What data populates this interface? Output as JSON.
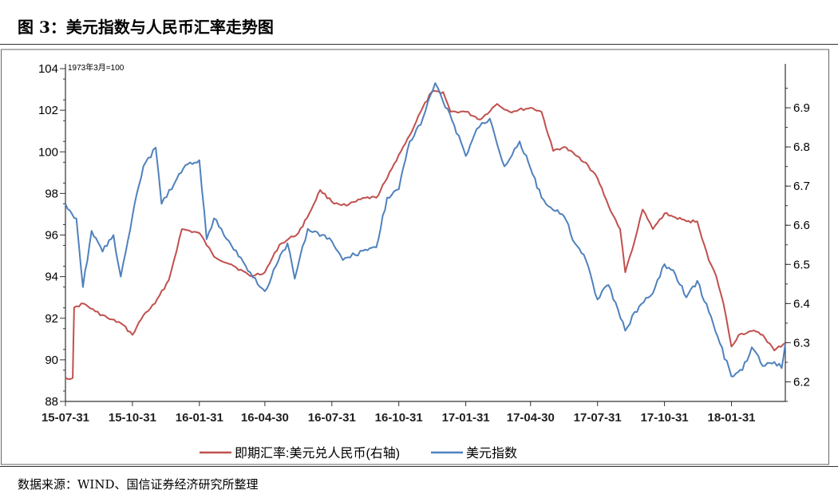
{
  "figure": {
    "title": "图 3：美元指数与人民币汇率走势图",
    "source": "数据来源：WIND、国信证券经济研究所整理",
    "note": "1973年3月=100"
  },
  "colors": {
    "usdcny": "#C0504D",
    "dxy": "#4F81BD",
    "axis": "#333333"
  },
  "chart_data": {
    "type": "line",
    "x_tick_labels": [
      "15-07-31",
      "15-10-31",
      "16-01-31",
      "16-04-30",
      "16-07-31",
      "16-10-31",
      "17-01-31",
      "17-04-30",
      "17-07-31",
      "17-10-31",
      "18-01-31"
    ],
    "x_range": [
      "2015-07-31",
      "2018-04-15"
    ],
    "y_left": {
      "range": [
        88,
        104
      ],
      "ticks": [
        "88",
        "90",
        "92",
        "94",
        "96",
        "98",
        "100",
        "102",
        "104"
      ]
    },
    "y_right": {
      "range": [
        6.15,
        7.0
      ],
      "ticks": [
        "6.2",
        "6.3",
        "6.4",
        "6.5",
        "6.6",
        "6.7",
        "6.8",
        "6.9"
      ]
    },
    "legend_position": "bottom-center",
    "grid": false,
    "series": [
      {
        "name": "即期汇率:美元兑人民币(右轴)",
        "axis": "right",
        "points": [
          [
            "2015-07-31",
            6.21
          ],
          [
            "2015-08-10",
            6.21
          ],
          [
            "2015-08-12",
            6.39
          ],
          [
            "2015-08-25",
            6.4
          ],
          [
            "2015-09-10",
            6.38
          ],
          [
            "2015-09-30",
            6.36
          ],
          [
            "2015-10-15",
            6.35
          ],
          [
            "2015-10-31",
            6.32
          ],
          [
            "2015-11-15",
            6.37
          ],
          [
            "2015-12-01",
            6.4
          ],
          [
            "2015-12-20",
            6.46
          ],
          [
            "2016-01-07",
            6.59
          ],
          [
            "2016-01-31",
            6.58
          ],
          [
            "2016-02-20",
            6.52
          ],
          [
            "2016-03-15",
            6.5
          ],
          [
            "2016-04-10",
            6.47
          ],
          [
            "2016-04-30",
            6.48
          ],
          [
            "2016-05-20",
            6.55
          ],
          [
            "2016-06-15",
            6.58
          ],
          [
            "2016-06-30",
            6.63
          ],
          [
            "2016-07-15",
            6.69
          ],
          [
            "2016-07-31",
            6.66
          ],
          [
            "2016-08-20",
            6.65
          ],
          [
            "2016-09-15",
            6.67
          ],
          [
            "2016-09-30",
            6.67
          ],
          [
            "2016-10-15",
            6.72
          ],
          [
            "2016-10-31",
            6.78
          ],
          [
            "2016-11-15",
            6.83
          ],
          [
            "2016-11-30",
            6.89
          ],
          [
            "2016-12-15",
            6.94
          ],
          [
            "2016-12-31",
            6.94
          ],
          [
            "2017-01-10",
            6.89
          ],
          [
            "2017-01-31",
            6.89
          ],
          [
            "2017-02-20",
            6.87
          ],
          [
            "2017-03-15",
            6.91
          ],
          [
            "2017-04-01",
            6.89
          ],
          [
            "2017-04-30",
            6.9
          ],
          [
            "2017-05-15",
            6.89
          ],
          [
            "2017-05-31",
            6.79
          ],
          [
            "2017-06-15",
            6.8
          ],
          [
            "2017-06-30",
            6.78
          ],
          [
            "2017-07-15",
            6.76
          ],
          [
            "2017-07-31",
            6.72
          ],
          [
            "2017-08-15",
            6.65
          ],
          [
            "2017-08-31",
            6.59
          ],
          [
            "2017-09-07",
            6.48
          ],
          [
            "2017-09-20",
            6.56
          ],
          [
            "2017-10-01",
            6.64
          ],
          [
            "2017-10-15",
            6.59
          ],
          [
            "2017-10-31",
            6.63
          ],
          [
            "2017-11-15",
            6.62
          ],
          [
            "2017-11-30",
            6.61
          ],
          [
            "2017-12-15",
            6.61
          ],
          [
            "2017-12-31",
            6.51
          ],
          [
            "2018-01-10",
            6.47
          ],
          [
            "2018-01-20",
            6.4
          ],
          [
            "2018-01-31",
            6.29
          ],
          [
            "2018-02-10",
            6.32
          ],
          [
            "2018-02-28",
            6.33
          ],
          [
            "2018-03-15",
            6.32
          ],
          [
            "2018-03-31",
            6.28
          ],
          [
            "2018-04-15",
            6.3
          ]
        ]
      },
      {
        "name": "美元指数",
        "axis": "left",
        "points": [
          [
            "2015-07-31",
            97.5
          ],
          [
            "2015-08-15",
            96.8
          ],
          [
            "2015-08-24",
            93.5
          ],
          [
            "2015-09-05",
            96.2
          ],
          [
            "2015-09-20",
            95.2
          ],
          [
            "2015-10-05",
            96.0
          ],
          [
            "2015-10-15",
            94.0
          ],
          [
            "2015-10-31",
            96.9
          ],
          [
            "2015-11-15",
            99.3
          ],
          [
            "2015-12-02",
            100.2
          ],
          [
            "2015-12-10",
            97.5
          ],
          [
            "2015-12-31",
            98.7
          ],
          [
            "2016-01-15",
            99.4
          ],
          [
            "2016-01-31",
            99.6
          ],
          [
            "2016-02-10",
            95.8
          ],
          [
            "2016-02-20",
            96.8
          ],
          [
            "2016-03-15",
            95.5
          ],
          [
            "2016-04-10",
            94.2
          ],
          [
            "2016-04-30",
            93.3
          ],
          [
            "2016-05-15",
            94.5
          ],
          [
            "2016-05-31",
            95.6
          ],
          [
            "2016-06-10",
            93.9
          ],
          [
            "2016-06-28",
            96.3
          ],
          [
            "2016-07-31",
            95.7
          ],
          [
            "2016-08-15",
            94.8
          ],
          [
            "2016-09-15",
            95.3
          ],
          [
            "2016-09-30",
            95.4
          ],
          [
            "2016-10-15",
            97.8
          ],
          [
            "2016-10-31",
            98.2
          ],
          [
            "2016-11-15",
            100.5
          ],
          [
            "2016-11-30",
            101.3
          ],
          [
            "2016-12-20",
            103.3
          ],
          [
            "2016-12-31",
            102.4
          ],
          [
            "2017-01-15",
            101.3
          ],
          [
            "2017-01-31",
            99.8
          ],
          [
            "2017-02-15",
            101.1
          ],
          [
            "2017-03-05",
            101.6
          ],
          [
            "2017-03-25",
            99.3
          ],
          [
            "2017-04-15",
            100.5
          ],
          [
            "2017-04-30",
            99.2
          ],
          [
            "2017-05-15",
            97.8
          ],
          [
            "2017-05-31",
            97.2
          ],
          [
            "2017-06-15",
            96.9
          ],
          [
            "2017-06-30",
            95.6
          ],
          [
            "2017-07-15",
            94.8
          ],
          [
            "2017-07-31",
            92.9
          ],
          [
            "2017-08-15",
            93.6
          ],
          [
            "2017-09-07",
            91.4
          ],
          [
            "2017-09-20",
            92.3
          ],
          [
            "2017-10-15",
            93.2
          ],
          [
            "2017-10-31",
            94.6
          ],
          [
            "2017-11-15",
            94.1
          ],
          [
            "2017-11-30",
            93.0
          ],
          [
            "2017-12-15",
            93.8
          ],
          [
            "2017-12-31",
            92.3
          ],
          [
            "2018-01-15",
            90.8
          ],
          [
            "2018-01-31",
            89.2
          ],
          [
            "2018-02-15",
            89.5
          ],
          [
            "2018-02-28",
            90.6
          ],
          [
            "2018-03-15",
            89.7
          ],
          [
            "2018-03-31",
            89.9
          ],
          [
            "2018-04-10",
            89.6
          ],
          [
            "2018-04-15",
            90.8
          ]
        ]
      }
    ]
  }
}
